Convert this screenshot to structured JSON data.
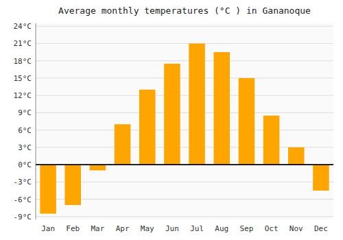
{
  "chart_data": {
    "type": "bar",
    "title": "Average monthly temperatures (°C ) in Gananoque",
    "categories": [
      "Jan",
      "Feb",
      "Mar",
      "Apr",
      "May",
      "Jun",
      "Jul",
      "Aug",
      "Sep",
      "Oct",
      "Nov",
      "Dec"
    ],
    "values": [
      -8.5,
      -7.0,
      -1.0,
      7.0,
      13.0,
      17.5,
      21.0,
      19.5,
      15.0,
      8.5,
      3.0,
      -4.5
    ],
    "color": "#FFA500",
    "ylim": [
      -9.5,
      24.5
    ],
    "yticks": [
      {
        "value": -9,
        "label": "-9°C"
      },
      {
        "value": -6,
        "label": "-6°C"
      },
      {
        "value": -3,
        "label": "-3°C"
      },
      {
        "value": 0,
        "label": "0°C"
      },
      {
        "value": 3,
        "label": "3°C"
      },
      {
        "value": 6,
        "label": "6°C"
      },
      {
        "value": 9,
        "label": "9°C"
      },
      {
        "value": 12,
        "label": "12°C"
      },
      {
        "value": 15,
        "label": "15°C"
      },
      {
        "value": 18,
        "label": "18°C"
      },
      {
        "value": 21,
        "label": "21°C"
      },
      {
        "value": 24,
        "label": "24°C"
      }
    ],
    "grid": true
  }
}
